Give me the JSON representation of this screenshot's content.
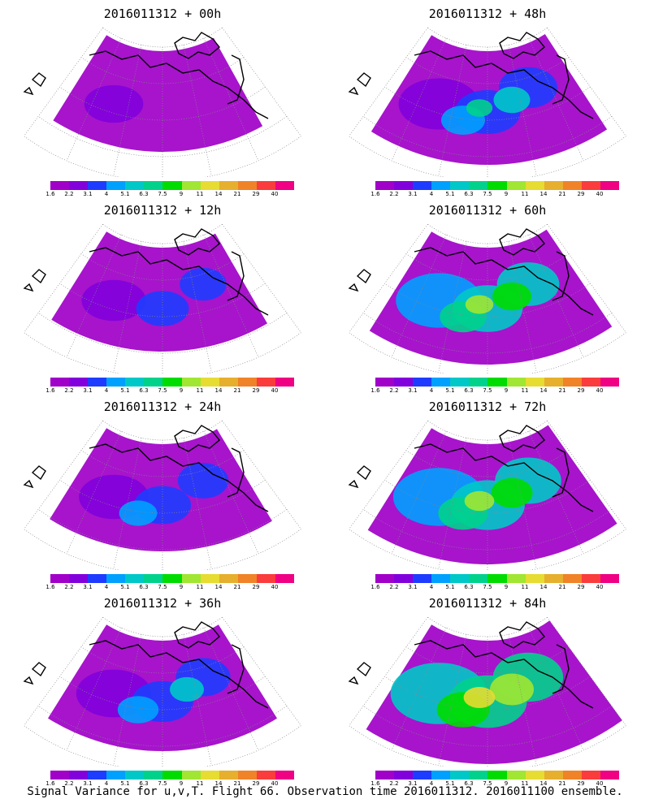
{
  "caption": "Signal Variance for u,v,T. Flight 66. Observation time 2016011312. 2016011100 ensemble.",
  "colorbar": {
    "labels": [
      "1.6",
      "2.2",
      "3.1",
      "4",
      "5.1",
      "6.3",
      "7.5",
      "9",
      "11",
      "14",
      "21",
      "29",
      "40"
    ],
    "colors": [
      "#a000c8",
      "#8200dc",
      "#1e3cff",
      "#00a0ff",
      "#00c8c8",
      "#00d28c",
      "#00dc00",
      "#a0e632",
      "#e6dc32",
      "#e6af2d",
      "#f08228",
      "#fa3c3c",
      "#f00082"
    ]
  },
  "panels": [
    {
      "title": "2016011312 + 00h",
      "lead_hours": 0
    },
    {
      "title": "2016011312 + 48h",
      "lead_hours": 48
    },
    {
      "title": "2016011312 + 12h",
      "lead_hours": 12
    },
    {
      "title": "2016011312 + 60h",
      "lead_hours": 60
    },
    {
      "title": "2016011312 + 24h",
      "lead_hours": 24
    },
    {
      "title": "2016011312 + 72h",
      "lead_hours": 72
    },
    {
      "title": "2016011312 + 36h",
      "lead_hours": 36
    },
    {
      "title": "2016011312 + 84h",
      "lead_hours": 84
    }
  ]
}
